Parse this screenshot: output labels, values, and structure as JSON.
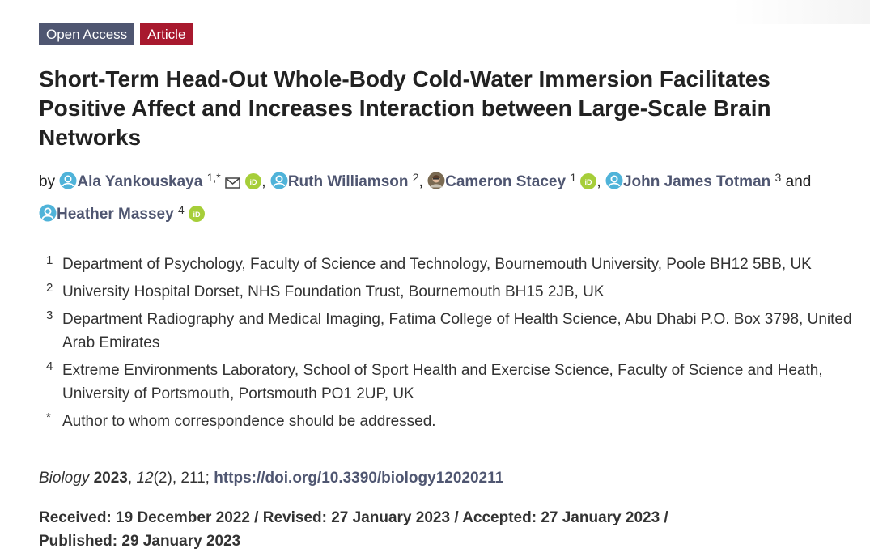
{
  "badges": {
    "open_access": "Open Access",
    "article": "Article"
  },
  "title": "Short-Term Head-Out Whole-Body Cold-Water Immersion Facilitates Positive Affect and Increases Interaction between Large-Scale Brain Networks",
  "authors_prefix": "by",
  "authors": [
    {
      "name": "Ala Yankouskaya",
      "affil": "1,*",
      "icons": [
        "user-icon",
        "mail-icon",
        "orcid-icon"
      ]
    },
    {
      "name": "Ruth Williamson",
      "affil": "2",
      "icons": [
        "user-icon"
      ]
    },
    {
      "name": "Cameron Stacey",
      "affil": "1",
      "icons": [
        "author-photo",
        "orcid-icon"
      ]
    },
    {
      "name": "John James Totman",
      "affil": "3",
      "icons": [
        "user-icon"
      ]
    },
    {
      "name": "Heather Massey",
      "affil": "4",
      "icons": [
        "user-icon",
        "orcid-icon"
      ]
    }
  ],
  "separators": {
    "comma": ",",
    "and": "and"
  },
  "affiliations": [
    {
      "num": "1",
      "text": "Department of Psychology, Faculty of Science and Technology, Bournemouth University, Poole BH12 5BB, UK"
    },
    {
      "num": "2",
      "text": "University Hospital Dorset, NHS Foundation Trust, Bournemouth BH15 2JB, UK"
    },
    {
      "num": "3",
      "text": "Department Radiography and Medical Imaging, Fatima College of Health Science, Abu Dhabi P.O. Box 3798, United Arab Emirates"
    },
    {
      "num": "4",
      "text": "Extreme Environments Laboratory, School of Sport Health and Exercise Science, Faculty of Science and Heath, University of Portsmouth, Portsmouth PO1 2UP, UK"
    },
    {
      "num": "*",
      "text": "Author to whom correspondence should be addressed."
    }
  ],
  "citation": {
    "journal": "Biology",
    "year": "2023",
    "volume": "12",
    "issue_pages": "(2), 211; ",
    "doi": "https://doi.org/10.3390/biology12020211"
  },
  "dates": {
    "received": "Received: 19 December 2022",
    "revised": "Revised: 27 January 2023",
    "accepted": "Accepted: 27 January 2023",
    "published": "Published: 29 January 2023",
    "separator": " / "
  },
  "colors": {
    "accent": "#4f5671",
    "article_badge": "#a8192e",
    "orcid": "#a6ce39",
    "user_icon": "#4fb3d9"
  }
}
